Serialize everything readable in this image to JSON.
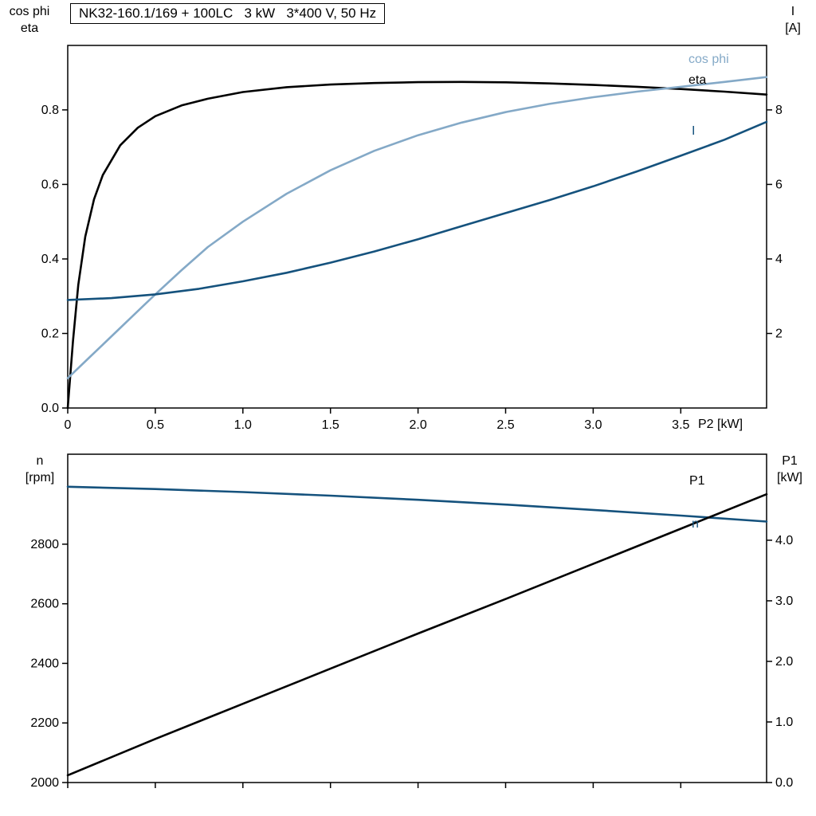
{
  "title_box": {
    "text": "NK32-160.1/169 + 100LC   3 kW   3*400 V, 50 Hz"
  },
  "colors": {
    "black": "#000000",
    "dark_blue": "#15527d",
    "light_blue": "#84a9c7"
  },
  "chart_data": [
    {
      "type": "line",
      "title": "NK32-160.1/169 + 100LC   3 kW   3*400 V, 50 Hz",
      "xlabel": "P2 [kW]",
      "ylabel_left": [
        "cos phi",
        "eta"
      ],
      "ylabel_right": [
        "I",
        "[A]"
      ],
      "xlim": [
        0,
        3.99
      ],
      "ylim_left": [
        0,
        0.973
      ],
      "ylim_right": [
        0,
        9.73
      ],
      "xticks": [
        0,
        0.5,
        1,
        1.5,
        2,
        2.5,
        3,
        3.5
      ],
      "xtick_labels": [
        "0",
        "0.5",
        "1.0",
        "1.5",
        "2.0",
        "2.5",
        "3.0",
        "3.5"
      ],
      "yticks_left": [
        0,
        0.2,
        0.4,
        0.6,
        0.8
      ],
      "ytick_labels_left": [
        "0.0",
        "0.2",
        "0.4",
        "0.6",
        "0.8"
      ],
      "yticks_right": [
        2,
        4,
        6,
        8
      ],
      "ytick_labels_right": [
        "2",
        "4",
        "6",
        "8"
      ],
      "grid": false,
      "legend_position": "inside-right",
      "series": [
        {
          "name": "eta",
          "axis": "left",
          "color": "#000000",
          "x": [
            0,
            0.03,
            0.06,
            0.1,
            0.15,
            0.2,
            0.3,
            0.4,
            0.5,
            0.65,
            0.8,
            1.0,
            1.25,
            1.5,
            1.75,
            2.0,
            2.25,
            2.5,
            2.75,
            3.0,
            3.25,
            3.5,
            3.75,
            3.99
          ],
          "y": [
            0,
            0.18,
            0.33,
            0.46,
            0.56,
            0.625,
            0.705,
            0.752,
            0.783,
            0.812,
            0.83,
            0.848,
            0.861,
            0.868,
            0.872,
            0.8745,
            0.875,
            0.874,
            0.871,
            0.867,
            0.862,
            0.856,
            0.849,
            0.841
          ]
        },
        {
          "name": "cos phi",
          "axis": "left",
          "color": "#84a9c7",
          "x": [
            0,
            0.1,
            0.2,
            0.3,
            0.4,
            0.5,
            0.65,
            0.8,
            1.0,
            1.25,
            1.5,
            1.75,
            2.0,
            2.25,
            2.5,
            2.75,
            3.0,
            3.25,
            3.5,
            3.75,
            3.99
          ],
          "y": [
            0.08,
            0.125,
            0.17,
            0.215,
            0.26,
            0.305,
            0.37,
            0.432,
            0.5,
            0.575,
            0.638,
            0.69,
            0.732,
            0.766,
            0.794,
            0.816,
            0.834,
            0.849,
            0.862,
            0.875,
            0.888
          ]
        },
        {
          "name": "I",
          "axis": "right",
          "color": "#15527d",
          "x": [
            0,
            0.25,
            0.5,
            0.75,
            1.0,
            1.25,
            1.5,
            1.75,
            2.0,
            2.25,
            2.5,
            2.75,
            3.0,
            3.25,
            3.5,
            3.75,
            3.99
          ],
          "y": [
            2.9,
            2.95,
            3.05,
            3.2,
            3.4,
            3.63,
            3.9,
            4.2,
            4.53,
            4.88,
            5.23,
            5.58,
            5.95,
            6.35,
            6.77,
            7.2,
            7.68
          ]
        }
      ]
    },
    {
      "type": "line",
      "title": "",
      "xlabel": "",
      "ylabel_left": [
        "n",
        "[rpm]"
      ],
      "ylabel_right": [
        "P1",
        "[kW]"
      ],
      "xlim": [
        0,
        3.99
      ],
      "ylim_left": [
        2000,
        3102
      ],
      "ylim_right": [
        0,
        5.42
      ],
      "xticks": [
        0,
        0.5,
        1,
        1.5,
        2,
        2.5,
        3,
        3.5
      ],
      "xtick_labels": [],
      "yticks_left": [
        2000,
        2200,
        2400,
        2600,
        2800
      ],
      "ytick_labels_left": [
        "2000",
        "2200",
        "2400",
        "2600",
        "2800"
      ],
      "yticks_right": [
        0,
        1,
        2,
        3,
        4
      ],
      "ytick_labels_right": [
        "0.0",
        "1.0",
        "2.0",
        "3.0",
        "4.0"
      ],
      "grid": false,
      "legend_position": "inside-right",
      "series": [
        {
          "name": "n",
          "axis": "left",
          "color": "#15527d",
          "x": [
            0,
            0.5,
            1,
            1.5,
            2,
            2.5,
            3,
            3.5,
            3.99
          ],
          "y": [
            2993,
            2985,
            2975,
            2963,
            2949,
            2933,
            2915,
            2896,
            2876
          ]
        },
        {
          "name": "P1",
          "axis": "right",
          "color": "#000000",
          "x": [
            0,
            0.5,
            1,
            1.5,
            2,
            2.5,
            3,
            3.5,
            3.99
          ],
          "y": [
            0.12,
            0.72,
            1.3,
            1.88,
            2.46,
            3.03,
            3.61,
            4.19,
            4.76
          ]
        }
      ]
    }
  ]
}
